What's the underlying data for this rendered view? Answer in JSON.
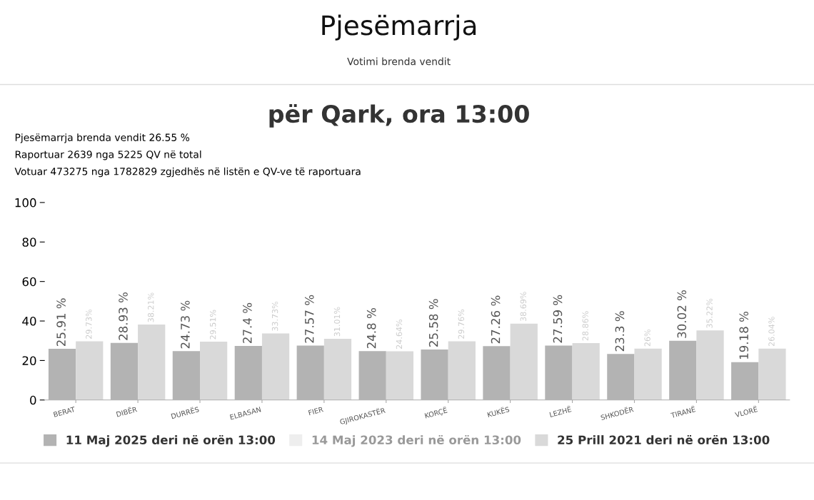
{
  "chart_data": {
    "type": "bar",
    "title": "Pjesëmarrja",
    "subtitle": "Votimi brenda vendit",
    "annotations": [
      "për Qark, ora 13:00",
      "Pjesëmarrja brenda vendit 26.55 %",
      "Raportuar 2639 nga 5225 QV në total",
      "Votuar 473275 nga 1782829 zgjedhës në listën e QV-ve të raportuara"
    ],
    "categories": [
      "BERAT",
      "DIBËR",
      "DURRËS",
      "ELBASAN",
      "FIER",
      "GJIROKASTËR",
      "KORÇË",
      "KUKËS",
      "LEZHË",
      "SHKODËR",
      "TIRANË",
      "VLORË"
    ],
    "series": [
      {
        "name": "11 Maj 2025 deri në orën 13:00",
        "color": "#b3b3b3",
        "values": [
          25.91,
          28.93,
          24.73,
          27.4,
          27.57,
          24.8,
          25.58,
          27.26,
          27.59,
          23.3,
          30.02,
          19.18
        ],
        "value_labels": [
          "25.91 %",
          "28.93 %",
          "24.73 %",
          "27.4 %",
          "27.57 %",
          "24.8 %",
          "25.58 %",
          "27.26 %",
          "27.59 %",
          "23.3 %",
          "30.02 %",
          "19.18 %"
        ]
      },
      {
        "name": "14 Maj 2023 deri në orën 13:00",
        "color": "#eeeeee",
        "values": [
          null,
          null,
          null,
          null,
          null,
          null,
          null,
          null,
          null,
          null,
          null,
          null
        ]
      },
      {
        "name": "25 Prill 2021 deri në orën 13:00",
        "color": "#d9d9d9",
        "values": [
          29.73,
          38.21,
          29.51,
          33.73,
          31.01,
          24.64,
          29.76,
          38.69,
          28.86,
          26,
          35.22,
          26.04
        ],
        "value_labels": [
          "29.73%",
          "38.21%",
          "29.51%",
          "33.73%",
          "31.01%",
          "24.64%",
          "29.76%",
          "38.69%",
          "28.86%",
          "26%",
          "35.22%",
          "26.04%"
        ]
      }
    ],
    "ylim": [
      0,
      100
    ],
    "yticks": [
      0,
      20,
      40,
      60,
      80,
      100
    ],
    "grid": false,
    "legend": "bottom"
  }
}
